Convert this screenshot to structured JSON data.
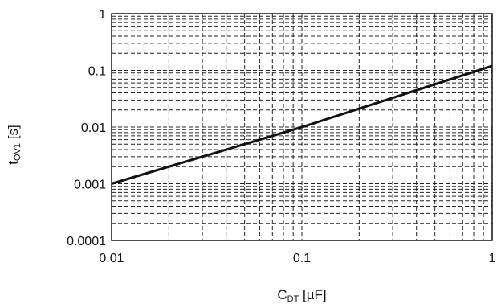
{
  "chart_data": {
    "type": "line",
    "xlabel_main": "C",
    "xlabel_sub": "DT",
    "xlabel_unit": " [µF]",
    "ylabel_main": "t",
    "ylabel_sub": "OV1",
    "ylabel_unit": " [s]",
    "x_scale": "log",
    "y_scale": "log",
    "xlim": [
      0.01,
      1
    ],
    "ylim": [
      0.0001,
      1
    ],
    "x_ticks": [
      {
        "value": 0.01,
        "label": "0.01"
      },
      {
        "value": 0.1,
        "label": "0.1"
      },
      {
        "value": 1,
        "label": "1"
      }
    ],
    "y_ticks": [
      {
        "value": 0.0001,
        "label": "0.0001"
      },
      {
        "value": 0.001,
        "label": "0.001"
      },
      {
        "value": 0.01,
        "label": "0.01"
      },
      {
        "value": 0.1,
        "label": "0.1"
      },
      {
        "value": 1,
        "label": "1"
      }
    ],
    "grid": true,
    "grid_style": "dashed",
    "series": [
      {
        "x": [
          0.01,
          0.1,
          1
        ],
        "y": [
          0.001,
          0.01,
          0.12
        ],
        "color": "#111111"
      }
    ]
  }
}
